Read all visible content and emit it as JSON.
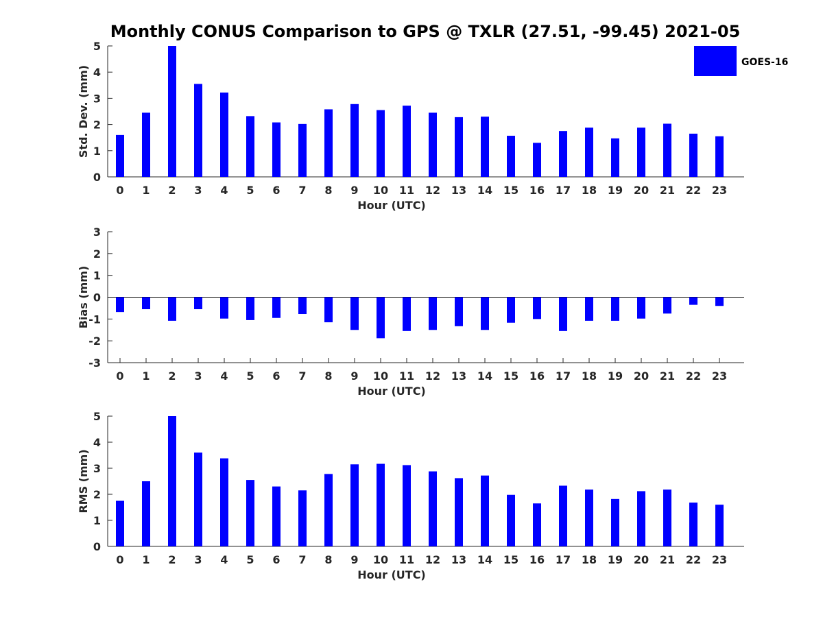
{
  "title": "Monthly CONUS Comparison to GPS @ TXLR (27.51, -99.45) 2021-05",
  "colors": {
    "bar": "#0000ff",
    "axis": "#262626"
  },
  "legend": {
    "label": "GOES-16",
    "placement": "top-right"
  },
  "chart_data": [
    {
      "type": "bar",
      "name": "std-dev",
      "xlabel": "Hour (UTC)",
      "ylabel": "Std. Dev. (mm)",
      "ylim": [
        0,
        5
      ],
      "yticks": [
        0,
        1,
        2,
        3,
        4,
        5
      ],
      "categories": [
        "0",
        "1",
        "2",
        "3",
        "4",
        "5",
        "6",
        "7",
        "8",
        "9",
        "10",
        "11",
        "12",
        "13",
        "14",
        "15",
        "16",
        "17",
        "18",
        "19",
        "20",
        "21",
        "22",
        "23"
      ],
      "series": [
        {
          "name": "GOES-16",
          "values": [
            1.6,
            2.45,
            5.0,
            3.55,
            3.22,
            2.32,
            2.08,
            2.02,
            2.58,
            2.78,
            2.55,
            2.72,
            2.45,
            2.28,
            2.3,
            1.57,
            1.3,
            1.75,
            1.88,
            1.47,
            1.88,
            2.03,
            1.65,
            1.55
          ]
        }
      ]
    },
    {
      "type": "bar",
      "name": "bias",
      "xlabel": "Hour (UTC)",
      "ylabel": "Bias (mm)",
      "ylim": [
        -3,
        3
      ],
      "yticks": [
        -3,
        -2,
        -1,
        0,
        1,
        2,
        3
      ],
      "categories": [
        "0",
        "1",
        "2",
        "3",
        "4",
        "5",
        "6",
        "7",
        "8",
        "9",
        "10",
        "11",
        "12",
        "13",
        "14",
        "15",
        "16",
        "17",
        "18",
        "19",
        "20",
        "21",
        "22",
        "23"
      ],
      "series": [
        {
          "name": "GOES-16",
          "values": [
            -0.68,
            -0.55,
            -1.08,
            -0.55,
            -0.98,
            -1.05,
            -0.95,
            -0.77,
            -1.15,
            -1.5,
            -1.88,
            -1.55,
            -1.5,
            -1.33,
            -1.5,
            -1.17,
            -1.0,
            -1.55,
            -1.08,
            -1.08,
            -0.98,
            -0.75,
            -0.35,
            -0.4
          ]
        }
      ]
    },
    {
      "type": "bar",
      "name": "rms",
      "xlabel": "Hour (UTC)",
      "ylabel": "RMS (mm)",
      "ylim": [
        0,
        5
      ],
      "yticks": [
        0,
        1,
        2,
        3,
        4,
        5
      ],
      "categories": [
        "0",
        "1",
        "2",
        "3",
        "4",
        "5",
        "6",
        "7",
        "8",
        "9",
        "10",
        "11",
        "12",
        "13",
        "14",
        "15",
        "16",
        "17",
        "18",
        "19",
        "20",
        "21",
        "22",
        "23"
      ],
      "series": [
        {
          "name": "GOES-16",
          "values": [
            1.75,
            2.5,
            5.0,
            3.6,
            3.38,
            2.55,
            2.3,
            2.15,
            2.78,
            3.15,
            3.17,
            3.12,
            2.88,
            2.62,
            2.72,
            1.98,
            1.65,
            2.33,
            2.18,
            1.82,
            2.12,
            2.18,
            1.68,
            1.6
          ]
        }
      ]
    }
  ]
}
